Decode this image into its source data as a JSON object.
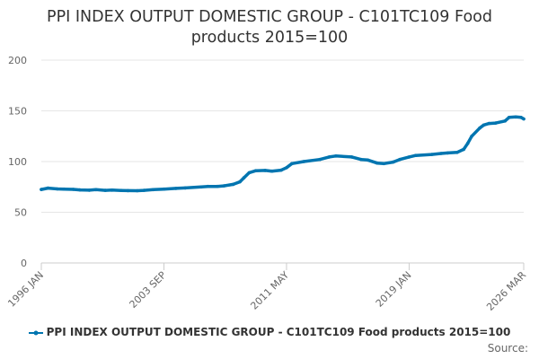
{
  "chart_data": {
    "type": "line",
    "title": "PPI INDEX OUTPUT DOMESTIC GROUP - C101TC109 Food products 2015=100",
    "xlabel": "",
    "ylabel": "",
    "x_tick_labels": [
      "1996 JAN",
      "2003 SEP",
      "2011 MAY",
      "2019 JAN",
      "2026 MAR"
    ],
    "xlim": [
      "1996-01",
      "2026-03"
    ],
    "ylim": [
      0,
      200
    ],
    "y_ticks": [
      0,
      50,
      100,
      150,
      200
    ],
    "grid": true,
    "legend_position": "bottom",
    "source_text": "Source:",
    "series": [
      {
        "name": "PPI INDEX OUTPUT DOMESTIC GROUP - C101TC109 Food products 2015=100",
        "color": "#0075b0",
        "points": [
          [
            "1996-01",
            72.5
          ],
          [
            "1996-06",
            73.8
          ],
          [
            "1997-01",
            73.0
          ],
          [
            "1997-06",
            72.8
          ],
          [
            "1998-01",
            72.6
          ],
          [
            "1998-06",
            72.0
          ],
          [
            "1999-01",
            71.8
          ],
          [
            "1999-06",
            72.3
          ],
          [
            "2000-01",
            71.6
          ],
          [
            "2000-06",
            71.9
          ],
          [
            "2001-01",
            71.5
          ],
          [
            "2001-06",
            71.3
          ],
          [
            "2002-01",
            71.2
          ],
          [
            "2002-06",
            71.6
          ],
          [
            "2003-01",
            72.3
          ],
          [
            "2003-09",
            72.8
          ],
          [
            "2004-06",
            73.5
          ],
          [
            "2005-01",
            74.0
          ],
          [
            "2006-01",
            75.0
          ],
          [
            "2006-06",
            75.5
          ],
          [
            "2007-01",
            75.5
          ],
          [
            "2007-06",
            76.0
          ],
          [
            "2008-01",
            77.5
          ],
          [
            "2008-06",
            80.0
          ],
          [
            "2008-09",
            84.0
          ],
          [
            "2009-01",
            89.0
          ],
          [
            "2009-06",
            91.0
          ],
          [
            "2010-01",
            91.2
          ],
          [
            "2010-06",
            90.5
          ],
          [
            "2011-01",
            91.5
          ],
          [
            "2011-05",
            94.0
          ],
          [
            "2011-09",
            98.0
          ],
          [
            "2012-06",
            100.0
          ],
          [
            "2013-06",
            102.0
          ],
          [
            "2014-01",
            104.5
          ],
          [
            "2014-06",
            105.5
          ],
          [
            "2015-06",
            104.5
          ],
          [
            "2016-01",
            102.0
          ],
          [
            "2016-06",
            101.5
          ],
          [
            "2017-01",
            98.5
          ],
          [
            "2017-06",
            98.0
          ],
          [
            "2018-01",
            99.5
          ],
          [
            "2018-06",
            102.0
          ],
          [
            "2019-01",
            104.5
          ],
          [
            "2019-06",
            106.0
          ],
          [
            "2020-06",
            107.0
          ],
          [
            "2021-01",
            108.0
          ],
          [
            "2021-06",
            108.5
          ],
          [
            "2022-01",
            109.0
          ],
          [
            "2022-06",
            112.0
          ],
          [
            "2022-09",
            118.0
          ],
          [
            "2022-12",
            125.0
          ],
          [
            "2023-06",
            133.0
          ],
          [
            "2023-09",
            136.0
          ],
          [
            "2024-01",
            137.5
          ],
          [
            "2024-06",
            138.0
          ],
          [
            "2025-01",
            140.0
          ],
          [
            "2025-04",
            143.5
          ],
          [
            "2025-09",
            144.0
          ],
          [
            "2026-01",
            143.5
          ],
          [
            "2026-03",
            142.0
          ]
        ]
      }
    ]
  }
}
